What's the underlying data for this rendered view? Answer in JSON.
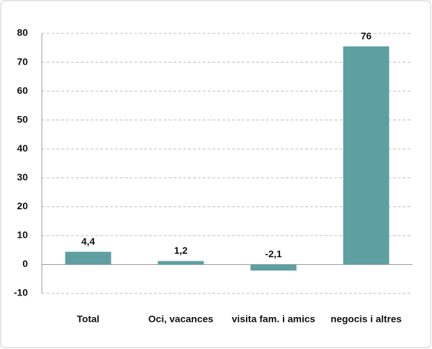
{
  "chart_data": {
    "type": "bar",
    "categories": [
      "Total",
      "Oci, vacances",
      "visita fam. i amics",
      "negocis i altres"
    ],
    "values": [
      4.4,
      1.2,
      -2.1,
      75.5
    ],
    "value_labels": [
      "4,4",
      "1,2",
      "-2,1",
      "76"
    ],
    "color": "#5e9fa2",
    "ylim": [
      -10,
      80
    ],
    "yticks": [
      -10,
      0,
      10,
      20,
      30,
      40,
      50,
      60,
      70,
      80
    ],
    "grid": true
  }
}
